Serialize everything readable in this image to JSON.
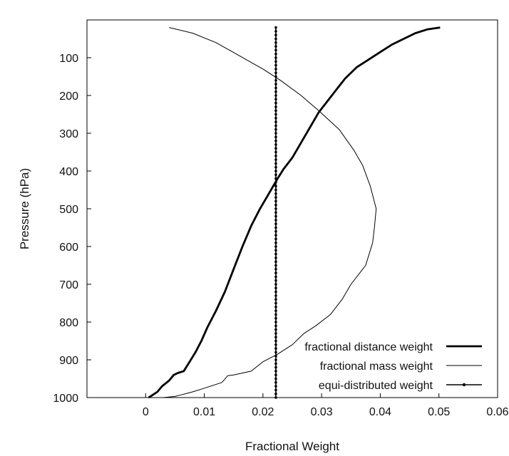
{
  "chart_data": {
    "type": "line",
    "title": "",
    "xlabel": "Fractional Weight",
    "ylabel": "Pressure (hPa)",
    "xlim": [
      -0.01,
      0.06
    ],
    "ylim": [
      1000,
      0
    ],
    "y_inverted": true,
    "grid": false,
    "legend_position": "bottom-right",
    "x_ticks": [
      0,
      0.01,
      0.02,
      0.03,
      0.04,
      0.05,
      0.06
    ],
    "x_tick_labels": [
      "0",
      "0.01",
      "0.02",
      "0.03",
      "0.04",
      "0.05",
      "0.06"
    ],
    "y_ticks": [
      100,
      200,
      300,
      400,
      500,
      600,
      700,
      800,
      900,
      1000
    ],
    "y_tick_labels": [
      "100",
      "200",
      "300",
      "400",
      "500",
      "600",
      "700",
      "800",
      "900",
      "1000"
    ],
    "series": [
      {
        "name": "fractional distance weight",
        "style": "thick",
        "color": "#000000",
        "points": [
          [
            0.0502,
            20
          ],
          [
            0.048,
            25
          ],
          [
            0.046,
            35
          ],
          [
            0.044,
            50
          ],
          [
            0.042,
            65
          ],
          [
            0.04,
            85
          ],
          [
            0.038,
            105
          ],
          [
            0.036,
            125
          ],
          [
            0.034,
            155
          ],
          [
            0.0325,
            185
          ],
          [
            0.031,
            215
          ],
          [
            0.0295,
            245
          ],
          [
            0.028,
            285
          ],
          [
            0.0265,
            325
          ],
          [
            0.025,
            365
          ],
          [
            0.0235,
            395
          ],
          [
            0.0225,
            420
          ],
          [
            0.021,
            460
          ],
          [
            0.0195,
            500
          ],
          [
            0.018,
            545
          ],
          [
            0.0165,
            600
          ],
          [
            0.015,
            660
          ],
          [
            0.0135,
            720
          ],
          [
            0.012,
            770
          ],
          [
            0.0105,
            815
          ],
          [
            0.0095,
            850
          ],
          [
            0.0085,
            880
          ],
          [
            0.0075,
            905
          ],
          [
            0.0065,
            930
          ],
          [
            0.0055,
            935
          ],
          [
            0.0048,
            940
          ],
          [
            0.004,
            955
          ],
          [
            0.0028,
            970
          ],
          [
            0.002,
            985
          ],
          [
            0.001,
            995
          ],
          [
            0.0005,
            1000
          ]
        ]
      },
      {
        "name": "fractional mass weight",
        "style": "thin",
        "color": "#000000",
        "points": [
          [
            0.004,
            20
          ],
          [
            0.008,
            35
          ],
          [
            0.012,
            60
          ],
          [
            0.016,
            95
          ],
          [
            0.02,
            130
          ],
          [
            0.023,
            160
          ],
          [
            0.0265,
            200
          ],
          [
            0.0295,
            240
          ],
          [
            0.033,
            290
          ],
          [
            0.0355,
            345
          ],
          [
            0.037,
            385
          ],
          [
            0.0383,
            440
          ],
          [
            0.0393,
            500
          ],
          [
            0.039,
            550
          ],
          [
            0.0387,
            590
          ],
          [
            0.0375,
            650
          ],
          [
            0.035,
            700
          ],
          [
            0.0335,
            740
          ],
          [
            0.0315,
            780
          ],
          [
            0.029,
            810
          ],
          [
            0.027,
            830
          ],
          [
            0.025,
            860
          ],
          [
            0.0225,
            885
          ],
          [
            0.02,
            905
          ],
          [
            0.018,
            930
          ],
          [
            0.015,
            940
          ],
          [
            0.014,
            942
          ],
          [
            0.013,
            960
          ],
          [
            0.01,
            975
          ],
          [
            0.008,
            985
          ],
          [
            0.006,
            993
          ],
          [
            0.005,
            997
          ],
          [
            0.003,
            1000
          ]
        ]
      },
      {
        "name": "equi-distributed weight",
        "style": "dotted-markers",
        "color": "#000000",
        "x": 0.0222,
        "y_range": [
          20,
          1000
        ]
      }
    ]
  }
}
